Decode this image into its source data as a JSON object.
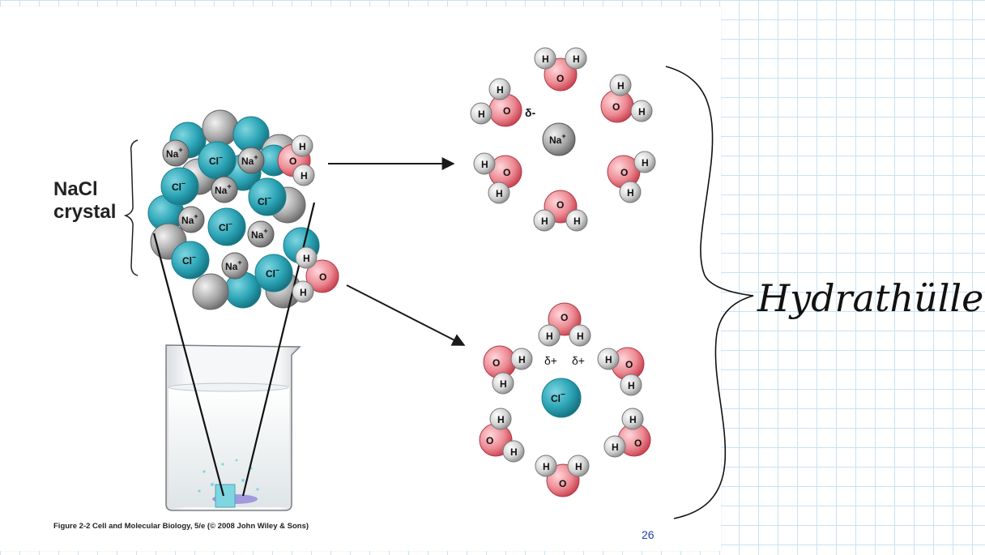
{
  "diagram": {
    "crystal_label": [
      "NaCl",
      "crystal"
    ],
    "ions": {
      "sodium": "Na",
      "chloride": "Cl",
      "plus": "+",
      "minus": "–"
    },
    "water_atoms": {
      "hydrogen": "H",
      "oxygen": "O"
    },
    "partial_charges": {
      "delta_minus": "δ-",
      "delta_plus_1": "δ+",
      "delta_plus_2": "δ+"
    },
    "cation_center": "Na",
    "cation_center_charge": "+",
    "anion_center": "Cl",
    "anion_center_charge": "−",
    "caption": "Figure 2-2  Cell and Molecular Biology, 5/e (© 2008 John Wiley & Sons)",
    "page_number": "26"
  },
  "annotation": {
    "handwritten_text": "Hydrathülle"
  },
  "colors": {
    "chloride": "#2aa3b5",
    "sodium": "#8c8c8c",
    "oxygen": "#e66a75",
    "hydrogen": "#cfcfcf",
    "grid": "#c9e3f2",
    "page_number": "#1f3fa8"
  }
}
